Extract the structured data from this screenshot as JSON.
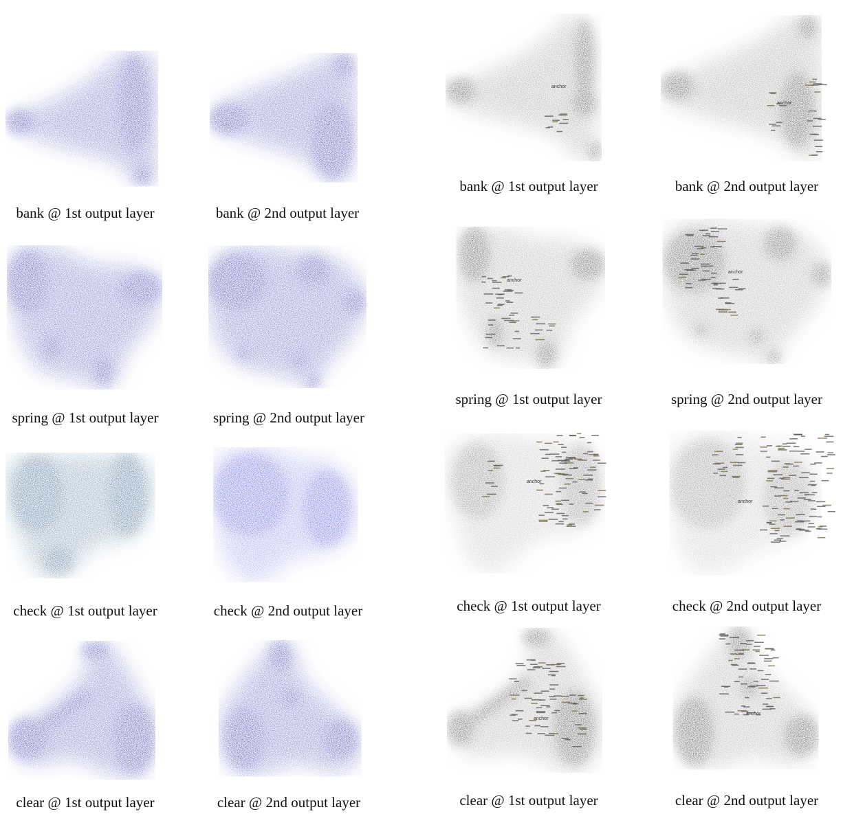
{
  "figure": {
    "left_group_color": "#1a1aa0",
    "left_group_check1_color": "#1b4f78",
    "right_group_color": "#1a1a1a",
    "word_label_color": "#7a6a3a",
    "panels_left": [
      {
        "id": "bank-1",
        "caption": "bank @ 1st output layer"
      },
      {
        "id": "bank-2",
        "caption": "bank @ 2nd output layer"
      },
      {
        "id": "spring-1",
        "caption": "spring @ 1st output layer"
      },
      {
        "id": "spring-2",
        "caption": "spring @ 2nd output layer"
      },
      {
        "id": "check-1",
        "caption": "check @ 1st output layer"
      },
      {
        "id": "check-2",
        "caption": "check @ 2nd output layer"
      },
      {
        "id": "clear-1",
        "caption": "clear @ 1st output layer"
      },
      {
        "id": "clear-2",
        "caption": "clear @ 2nd output layer"
      }
    ],
    "panels_right": [
      {
        "id": "bank-1",
        "caption": "bank @ 1st output layer",
        "anchor_label": "anchor"
      },
      {
        "id": "bank-2",
        "caption": "bank @ 2nd output layer",
        "anchor_label": "anchor"
      },
      {
        "id": "spring-1",
        "caption": "spring @ 1st output layer",
        "anchor_label": "anchor"
      },
      {
        "id": "spring-2",
        "caption": "spring @ 2nd output layer",
        "anchor_label": "anchor"
      },
      {
        "id": "check-1",
        "caption": "check @ 1st output layer",
        "anchor_label": "anchor"
      },
      {
        "id": "check-2",
        "caption": "check @ 2nd output layer",
        "anchor_label": "anchor"
      },
      {
        "id": "clear-1",
        "caption": "clear @ 1st output layer",
        "anchor_label": "anchor"
      },
      {
        "id": "clear-2",
        "caption": "clear @ 2nd output layer",
        "anchor_label": "anchor"
      }
    ]
  }
}
